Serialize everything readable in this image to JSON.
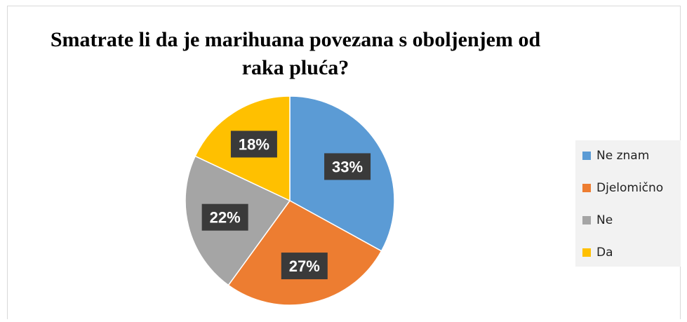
{
  "chart_data": {
    "type": "pie",
    "title": "Smatrate li da je marihuana povezana s oboljenjem od raka pluća?",
    "title_lines": [
      "Smatrate li da je marihuana povezana s oboljenjem od",
      "raka pluća?"
    ],
    "categories": [
      "Ne znam",
      "Djelomično",
      "Ne",
      "Da"
    ],
    "values": [
      33,
      27,
      22,
      18
    ],
    "labels": [
      "33%",
      "27%",
      "22%",
      "18%"
    ],
    "colors": [
      "#5b9bd5",
      "#ed7d31",
      "#a5a5a5",
      "#ffc000"
    ],
    "legend_position": "right",
    "start_angle": "top, clockwise"
  }
}
